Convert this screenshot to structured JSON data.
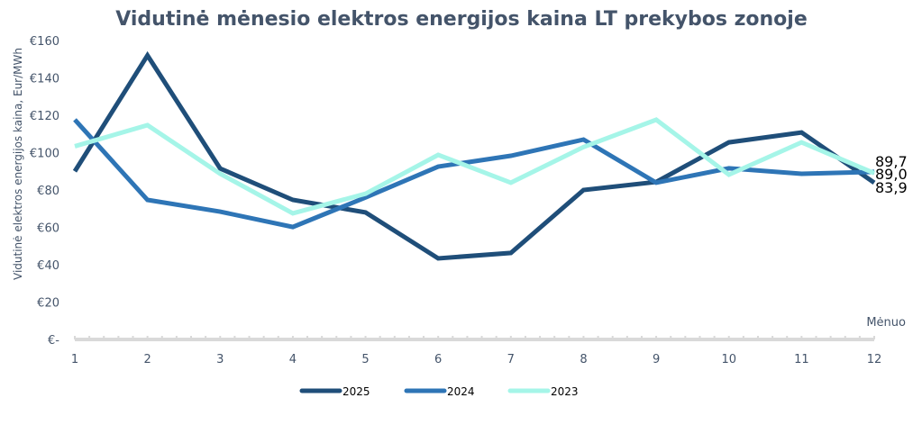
{
  "chart_data": {
    "type": "line",
    "title": "Vidutinė mėnesio elektros energijos kaina LT prekybos zonoje",
    "xlabel": "Mėnuo",
    "ylabel": "Vidutinė elektros energijos kaina, Eur/MWh",
    "x": [
      1,
      2,
      3,
      4,
      5,
      6,
      7,
      8,
      9,
      10,
      11,
      12
    ],
    "x_tick_labels": [
      "1",
      "2",
      "3",
      "4",
      "5",
      "6",
      "7",
      "8",
      "9",
      "10",
      "11",
      "12"
    ],
    "ylim": [
      0,
      160
    ],
    "y_ticks": [
      0,
      20,
      40,
      60,
      80,
      100,
      120,
      140,
      160
    ],
    "y_tick_labels": [
      "€-",
      "€20",
      "€40",
      "€60",
      "€80",
      "€100",
      "€120",
      "€140",
      "€160"
    ],
    "grid": false,
    "legend_position": "bottom",
    "series": [
      {
        "name": "2025",
        "color": "#1f4e79",
        "values": [
          90,
          152,
          91.5,
          74.7,
          68,
          43.4,
          46.3,
          80,
          84.3,
          105.5,
          110.8,
          83.9
        ],
        "end_label": "83,9"
      },
      {
        "name": "2024",
        "color": "#2e75b6",
        "values": [
          117.6,
          74.7,
          68.4,
          60.2,
          76,
          92.5,
          98.3,
          107,
          83.9,
          91.6,
          88.7,
          89.7
        ],
        "end_label": "89,7"
      },
      {
        "name": "2023",
        "color": "#a5f5e8",
        "values": [
          103.4,
          114.7,
          88.7,
          67.5,
          78,
          98.8,
          83.9,
          103,
          117.6,
          88.2,
          105.5,
          89.0
        ],
        "end_label": "89,0"
      }
    ]
  }
}
